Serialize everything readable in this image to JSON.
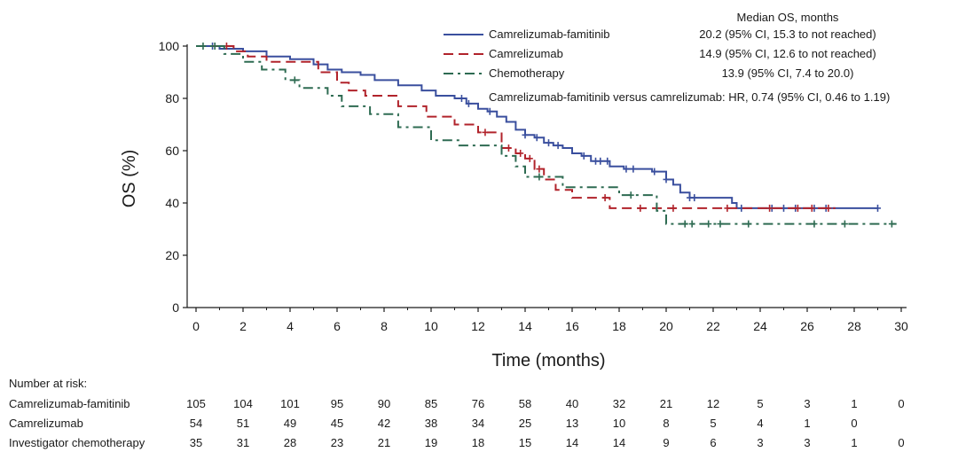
{
  "chart_data": {
    "type": "line",
    "subtype": "kaplan-meier",
    "xlabel": "Time (months)",
    "ylabel": "OS (%)",
    "xlim": [
      0,
      30
    ],
    "ylim": [
      0,
      100
    ],
    "x_ticks": [
      0,
      2,
      4,
      6,
      8,
      10,
      12,
      14,
      16,
      18,
      20,
      22,
      24,
      26,
      28,
      30
    ],
    "y_ticks": [
      0,
      20,
      40,
      60,
      80,
      100
    ],
    "grid": false,
    "legend_header": "Median OS, months",
    "hr_text": "Camrelizumab-famitinib versus camrelizumab: HR, 0.74 (95% CI, 0.46 to 1.19)",
    "series": [
      {
        "name": "Camrelizumab-famitinib",
        "median_text": "20.2 (95% CI, 15.3 to not reached)",
        "color": "#3a4f9e",
        "dash": "solid",
        "x": [
          0,
          1.0,
          2.0,
          3.0,
          4.0,
          5.0,
          5.6,
          6.2,
          7.0,
          7.6,
          8.6,
          9.6,
          10.2,
          11.0,
          11.5,
          12.0,
          12.4,
          12.8,
          13.2,
          13.6,
          14.0,
          14.4,
          14.8,
          15.2,
          15.6,
          16.0,
          16.4,
          16.8,
          17.6,
          18.2,
          19.4,
          20.0,
          20.3,
          20.6,
          21.0,
          21.6,
          22.4,
          22.8,
          23.0,
          29.0
        ],
        "y": [
          100,
          99,
          98,
          96,
          95,
          93,
          91,
          90,
          89,
          87,
          85,
          83,
          81,
          80,
          78,
          76,
          75,
          73,
          71,
          68,
          66,
          65,
          63,
          62,
          61,
          59,
          58,
          56,
          54,
          53,
          52,
          49,
          47,
          44,
          42,
          42,
          42,
          40,
          38,
          38
        ],
        "censor": [
          0.7,
          11.3,
          11.6,
          12.5,
          14.0,
          14.5,
          15.0,
          15.4,
          16.5,
          17.0,
          17.2,
          17.5,
          18.3,
          18.6,
          19.5,
          20.0,
          21.0,
          21.2,
          23.2,
          24.5,
          25.0,
          25.5,
          26.3,
          26.8,
          29.0
        ]
      },
      {
        "name": "Camrelizumab",
        "median_text": "14.9 (95% CI, 12.6 to not reached)",
        "color": "#b1232b",
        "dash": "dashed",
        "x": [
          0,
          1.6,
          2.2,
          3.0,
          4.0,
          5.2,
          6.0,
          6.5,
          7.2,
          8.6,
          9.8,
          11.0,
          12.0,
          13.0,
          13.6,
          14.0,
          14.4,
          14.8,
          15.3,
          16.0,
          17.6,
          20.0,
          27.2
        ],
        "y": [
          100,
          98,
          96,
          94,
          94,
          90,
          86,
          83,
          81,
          77,
          73,
          70,
          67,
          61,
          59,
          57,
          53,
          49,
          45,
          42,
          38,
          38,
          38
        ],
        "censor": [
          1.3,
          12.3,
          13.3,
          13.8,
          14.2,
          14.6,
          17.4,
          18.9,
          20.3,
          22.6,
          24.4,
          25.6,
          26.2,
          26.9
        ]
      },
      {
        "name": "Chemotherapy",
        "median_text": "13.9 (95% CI, 7.4 to 20.0)",
        "color": "#2e6b52",
        "dash": "dashdot",
        "x": [
          0,
          1.2,
          2.0,
          2.8,
          3.8,
          4.4,
          5.6,
          6.2,
          7.4,
          8.6,
          10.0,
          11.2,
          13.0,
          13.6,
          14.0,
          15.6,
          18.0,
          19.6,
          20.0,
          29.8
        ],
        "y": [
          100,
          97,
          94,
          91,
          87,
          84,
          81,
          77,
          74,
          69,
          64,
          62,
          58,
          54,
          50,
          46,
          43,
          37,
          32,
          32
        ],
        "censor": [
          0.3,
          0.8,
          4.2,
          14.6,
          18.5,
          20.8,
          21.1,
          21.8,
          22.3,
          23.5,
          26.3,
          27.6,
          29.6
        ]
      }
    ],
    "risk_table": {
      "header": "Number at risk:",
      "times": [
        0,
        2,
        4,
        6,
        8,
        10,
        12,
        14,
        16,
        18,
        20,
        22,
        24,
        26,
        28,
        30
      ],
      "rows": [
        {
          "label": "Camrelizumab-famitinib",
          "values": [
            "105",
            "104",
            "101",
            "95",
            "90",
            "85",
            "76",
            "58",
            "40",
            "32",
            "21",
            "12",
            "5",
            "3",
            "1",
            "0"
          ]
        },
        {
          "label": "Camrelizumab",
          "values": [
            "54",
            "51",
            "49",
            "45",
            "42",
            "38",
            "34",
            "25",
            "13",
            "10",
            "8",
            "5",
            "4",
            "1",
            "0",
            ""
          ]
        },
        {
          "label": "Investigator chemotherapy",
          "values": [
            "35",
            "31",
            "28",
            "23",
            "21",
            "19",
            "18",
            "15",
            "14",
            "14",
            "9",
            "6",
            "3",
            "3",
            "1",
            "0"
          ]
        }
      ]
    }
  }
}
